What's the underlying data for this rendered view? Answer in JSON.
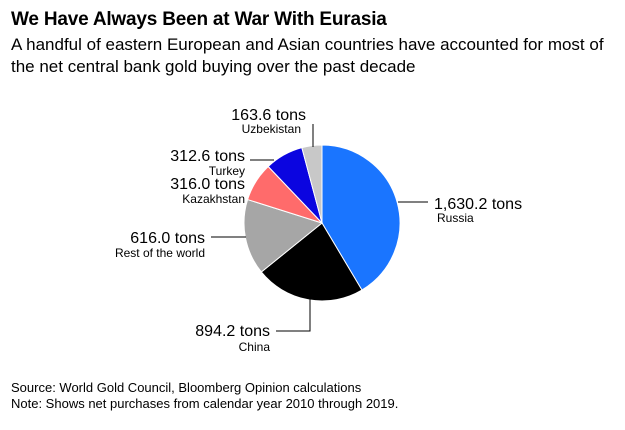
{
  "title": "We Have Always Been at War With Eurasia",
  "subtitle": "A handful of eastern European and Asian countries have accounted for most of the net central bank gold buying over the past decade",
  "chart_data": {
    "type": "pie",
    "unit": "tons",
    "slices": [
      {
        "name": "Russia",
        "value": 1630.2,
        "value_label": "1,630.2 tons",
        "color": "#1a75ff"
      },
      {
        "name": "China",
        "value": 894.2,
        "value_label": "894.2 tons",
        "color": "#000000"
      },
      {
        "name": "Rest of the world",
        "value": 616.0,
        "value_label": "616.0 tons",
        "color": "#a6a6a6"
      },
      {
        "name": "Kazakhstan",
        "value": 316.0,
        "value_label": "316.0 tons",
        "color": "#ff6b6b"
      },
      {
        "name": "Turkey",
        "value": 312.6,
        "value_label": "312.6 tons",
        "color": "#0b05e0"
      },
      {
        "name": "Uzbekistan",
        "value": 163.6,
        "value_label": "163.6 tons",
        "color": "#c8c8c8"
      }
    ]
  },
  "footnotes": {
    "source": "Source: World Gold Council, Bloomberg Opinion calculations",
    "note": "Note: Shows net purchases from calendar year 2010 through 2019."
  }
}
